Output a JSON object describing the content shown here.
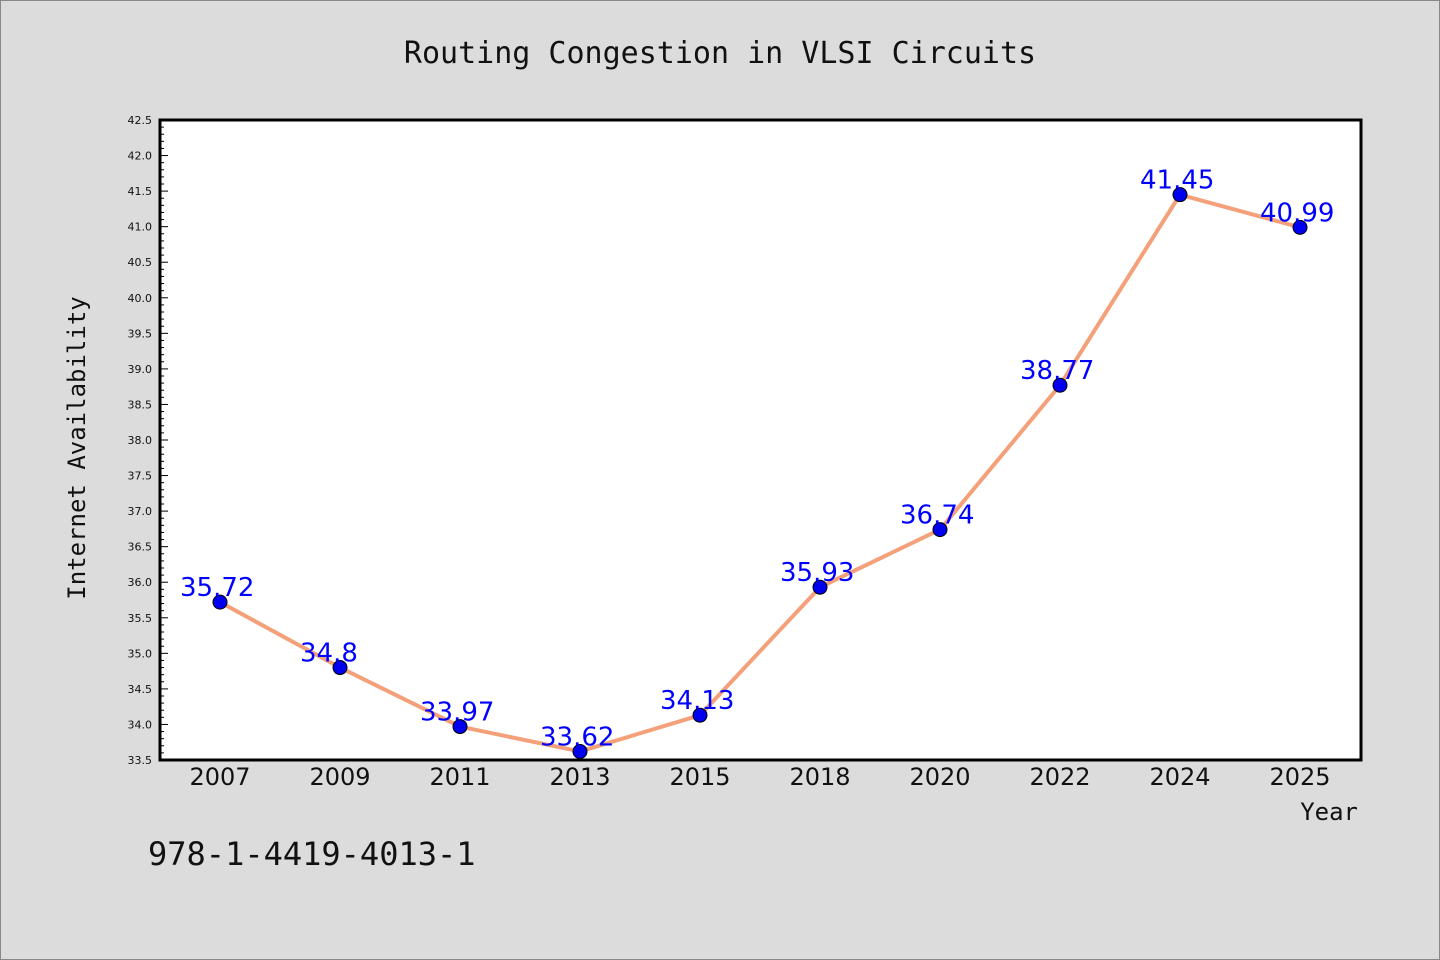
{
  "title": "Routing Congestion in VLSI Circuits",
  "footnote": "978-1-4419-4013-1",
  "chart_data": {
    "type": "line",
    "title": "Routing Congestion in VLSI Circuits",
    "xlabel": "Year",
    "ylabel": "Internet Availability",
    "categories": [
      "2007",
      "2009",
      "2011",
      "2013",
      "2015",
      "2018",
      "2020",
      "2022",
      "2024",
      "2025"
    ],
    "series": [
      {
        "values": [
          35.72,
          34.8,
          33.97,
          33.62,
          34.13,
          35.93,
          36.74,
          38.77,
          41.45,
          40.99
        ]
      }
    ],
    "data_labels": [
      "35.72",
      "34.8",
      "33.97",
      "33.62",
      "34.13",
      "35.93",
      "36.74",
      "38.77",
      "41.45",
      "40.99"
    ],
    "ylim": [
      33.5,
      42.5
    ],
    "yticks": [
      "33.5",
      "34.0",
      "34.5",
      "35.0",
      "35.5",
      "36.0",
      "36.5",
      "37.0",
      "37.5",
      "38.0",
      "38.5",
      "39.0",
      "39.5",
      "40.0",
      "40.5",
      "41.0",
      "41.5",
      "42.0",
      "42.5"
    ],
    "grid": false,
    "line_color": "#f4a07a",
    "marker_color": "#0000ee",
    "label_color": "#0000ff",
    "background": "#dcdcdc",
    "plot_background": "#ffffff"
  }
}
